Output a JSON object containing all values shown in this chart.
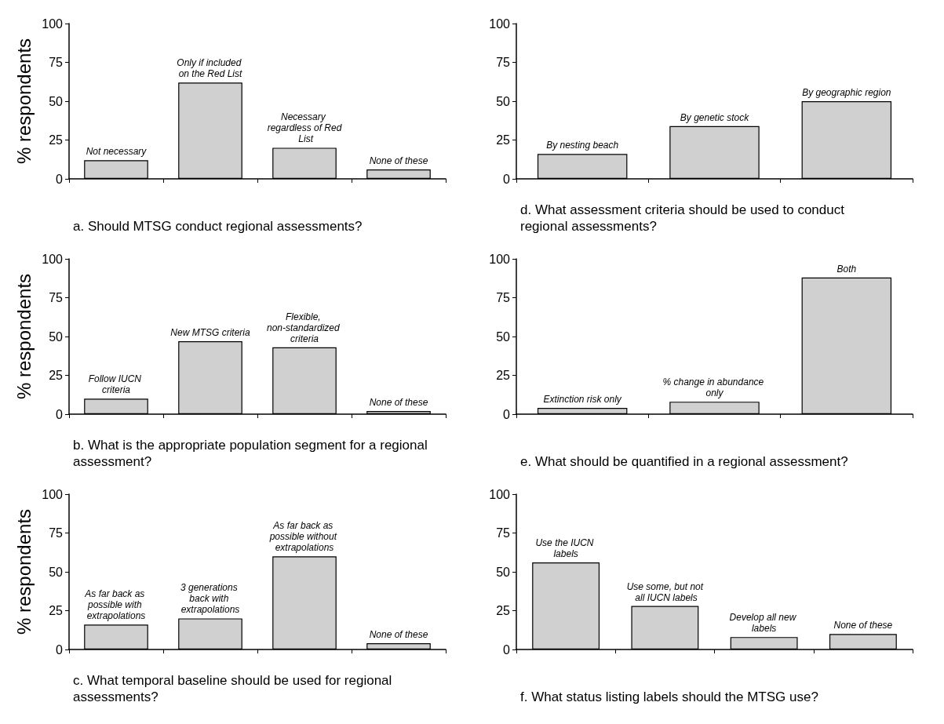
{
  "chart_data": [
    {
      "type": "bar",
      "title": "a. Should MTSG conduct regional assessments?",
      "ylabel": "% respondents",
      "categories": [
        "Not necessary",
        "Only if included on the Red List",
        "Necessary regardless of Red List",
        "None of these"
      ],
      "values": [
        12,
        62,
        20,
        6
      ],
      "color": "#d0d0d0",
      "ylim": [
        0,
        100
      ],
      "yticks": [
        0,
        25,
        50,
        75,
        100
      ],
      "grid": false,
      "tick_labels": "y"
    },
    {
      "type": "bar",
      "title": "d. What assessment criteria should be used to conduct regional assessments?",
      "categories": [
        "By nesting beach",
        "By genetic stock",
        "By geographic region"
      ],
      "values": [
        16,
        34,
        50
      ],
      "color": "#d0d0d0",
      "ylim": [
        0,
        100
      ],
      "yticks": [
        0,
        25,
        50,
        75,
        100
      ],
      "grid": false,
      "tick_labels": "y"
    },
    {
      "type": "bar",
      "title": "b. What is the appropriate population segment for a regional assessment?",
      "ylabel": "% respondents",
      "categories": [
        "Follow IUCN criteria",
        "New MTSG criteria",
        "Flexible, non-standardized criteria",
        "None of these"
      ],
      "values": [
        10,
        47,
        43,
        2
      ],
      "color": "#d0d0d0",
      "ylim": [
        0,
        100
      ],
      "yticks": [
        0,
        25,
        50,
        75,
        100
      ],
      "grid": false,
      "tick_labels": "y"
    },
    {
      "type": "bar",
      "title": "e. What should be quantified in a regional assessment?",
      "categories": [
        "Extinction risk only",
        "% change in abundance only",
        "Both"
      ],
      "values": [
        4,
        8,
        88
      ],
      "color": "#d0d0d0",
      "ylim": [
        0,
        100
      ],
      "yticks": [
        0,
        25,
        50,
        75,
        100
      ],
      "grid": false,
      "tick_labels": "y"
    },
    {
      "type": "bar",
      "title": "c. What temporal baseline should be used for regional assessments?",
      "ylabel": "% respondents",
      "categories": [
        "As far back as possible with extrapolations",
        "3 generations back with extrapolations",
        "As far back as possible without extrapolations",
        "None of these"
      ],
      "values": [
        16,
        20,
        60,
        4
      ],
      "color": "#d0d0d0",
      "ylim": [
        0,
        100
      ],
      "yticks": [
        0,
        25,
        50,
        75,
        100
      ],
      "grid": false,
      "tick_labels": "y"
    },
    {
      "type": "bar",
      "title": "f. What status listing labels should the MTSG use?",
      "categories": [
        "Use the IUCN labels",
        "Use some, but not all IUCN labels",
        "Develop all new labels",
        "None of these"
      ],
      "values": [
        56,
        28,
        8,
        10
      ],
      "color": "#d0d0d0",
      "ylim": [
        0,
        100
      ],
      "yticks": [
        0,
        25,
        50,
        75,
        100
      ],
      "grid": false,
      "tick_labels": "y"
    }
  ]
}
